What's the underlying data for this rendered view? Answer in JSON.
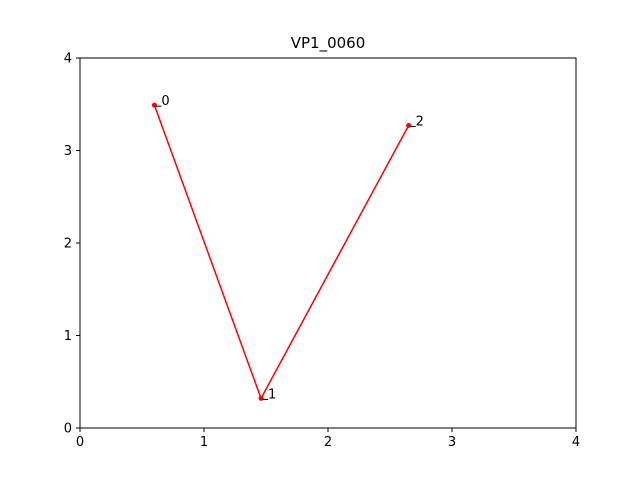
{
  "chart_data": {
    "type": "line",
    "title": "VP1_0060",
    "xlabel": "",
    "ylabel": "",
    "xlim": [
      0,
      4
    ],
    "ylim": [
      0,
      4
    ],
    "x_ticks": [
      "0",
      "1",
      "2",
      "3",
      "4"
    ],
    "y_ticks": [
      "0",
      "1",
      "2",
      "3",
      "4"
    ],
    "grid": false,
    "series": [
      {
        "color": "#ff0000",
        "points": [
          {
            "label": "0",
            "x": 0.6,
            "y": 3.49
          },
          {
            "label": "1",
            "x": 1.46,
            "y": 0.32
          },
          {
            "label": "2",
            "x": 2.65,
            "y": 3.27
          }
        ]
      }
    ]
  }
}
